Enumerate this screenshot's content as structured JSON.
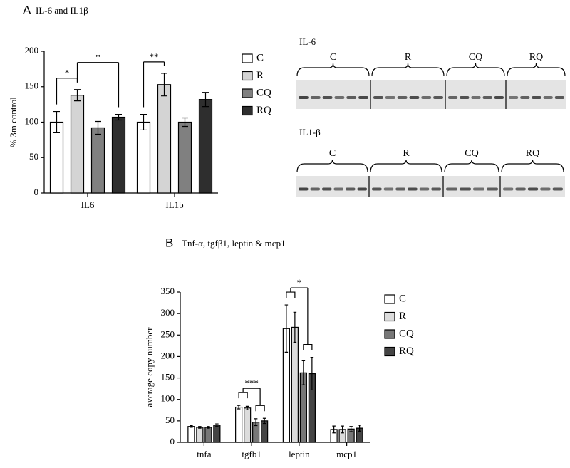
{
  "chart_data": [
    {
      "type": "bar",
      "panel": "A",
      "title": "IL-6 and IL1β",
      "y_label": "% 3m control",
      "categories": [
        "IL6",
        "IL1b"
      ],
      "series": [
        {
          "name": "C",
          "color": "#ffffff",
          "values": [
            100,
            100
          ],
          "errors": [
            15,
            11
          ]
        },
        {
          "name": "R",
          "color": "#d4d4d4",
          "values": [
            138,
            153
          ],
          "errors": [
            8,
            16
          ]
        },
        {
          "name": "CQ",
          "color": "#808080",
          "values": [
            92,
            100
          ],
          "errors": [
            9,
            6
          ]
        },
        {
          "name": "RQ",
          "color": "#2e2e2e",
          "values": [
            107,
            132
          ],
          "errors": [
            4,
            10
          ]
        }
      ],
      "ylim": [
        0,
        200
      ],
      "yticks": [
        0,
        50,
        100,
        150,
        200
      ],
      "annotations": [
        {
          "text": "*",
          "category": "IL6",
          "groups": [
            [
              "C"
            ],
            [
              "R"
            ]
          ]
        },
        {
          "text": "*",
          "category": "IL6",
          "groups": [
            [
              "R"
            ],
            [
              "RQ"
            ]
          ]
        },
        {
          "text": "**",
          "category": "IL1b",
          "groups": [
            [
              "C"
            ],
            [
              "R"
            ]
          ]
        }
      ]
    },
    {
      "type": "bar",
      "panel": "B",
      "title": "Tnf-α, tgfβ1, leptin & mcp1",
      "y_label": "average copy number",
      "categories": [
        "tnfa",
        "tgfb1",
        "leptin",
        "mcp1"
      ],
      "series": [
        {
          "name": "C",
          "color": "#ffffff",
          "values": [
            37,
            82,
            265,
            30
          ],
          "errors": [
            2,
            4,
            55,
            8
          ]
        },
        {
          "name": "R",
          "color": "#dcdcdc",
          "values": [
            35,
            80,
            268,
            30
          ],
          "errors": [
            2,
            4,
            35,
            8
          ]
        },
        {
          "name": "CQ",
          "color": "#777777",
          "values": [
            35,
            47,
            162,
            31
          ],
          "errors": [
            2,
            8,
            28,
            6
          ]
        },
        {
          "name": "RQ",
          "color": "#444444",
          "values": [
            40,
            50,
            160,
            33
          ],
          "errors": [
            3,
            6,
            38,
            7
          ]
        }
      ],
      "ylim": [
        0,
        350
      ],
      "yticks": [
        0,
        50,
        100,
        150,
        200,
        250,
        300,
        350
      ],
      "annotations": [
        {
          "text": "***",
          "category": "tgfb1",
          "groups": [
            [
              "C",
              "R"
            ],
            [
              "CQ",
              "RQ"
            ]
          ]
        },
        {
          "text": "*",
          "category": "leptin",
          "groups": [
            [
              "C",
              "R"
            ],
            [
              "CQ",
              "RQ"
            ]
          ]
        }
      ]
    }
  ],
  "blots": [
    {
      "title": "IL-6",
      "groups": [
        "C",
        "R",
        "CQ",
        "RQ"
      ]
    },
    {
      "title": "IL1-β",
      "groups": [
        "C",
        "R",
        "CQ",
        "RQ"
      ]
    }
  ]
}
